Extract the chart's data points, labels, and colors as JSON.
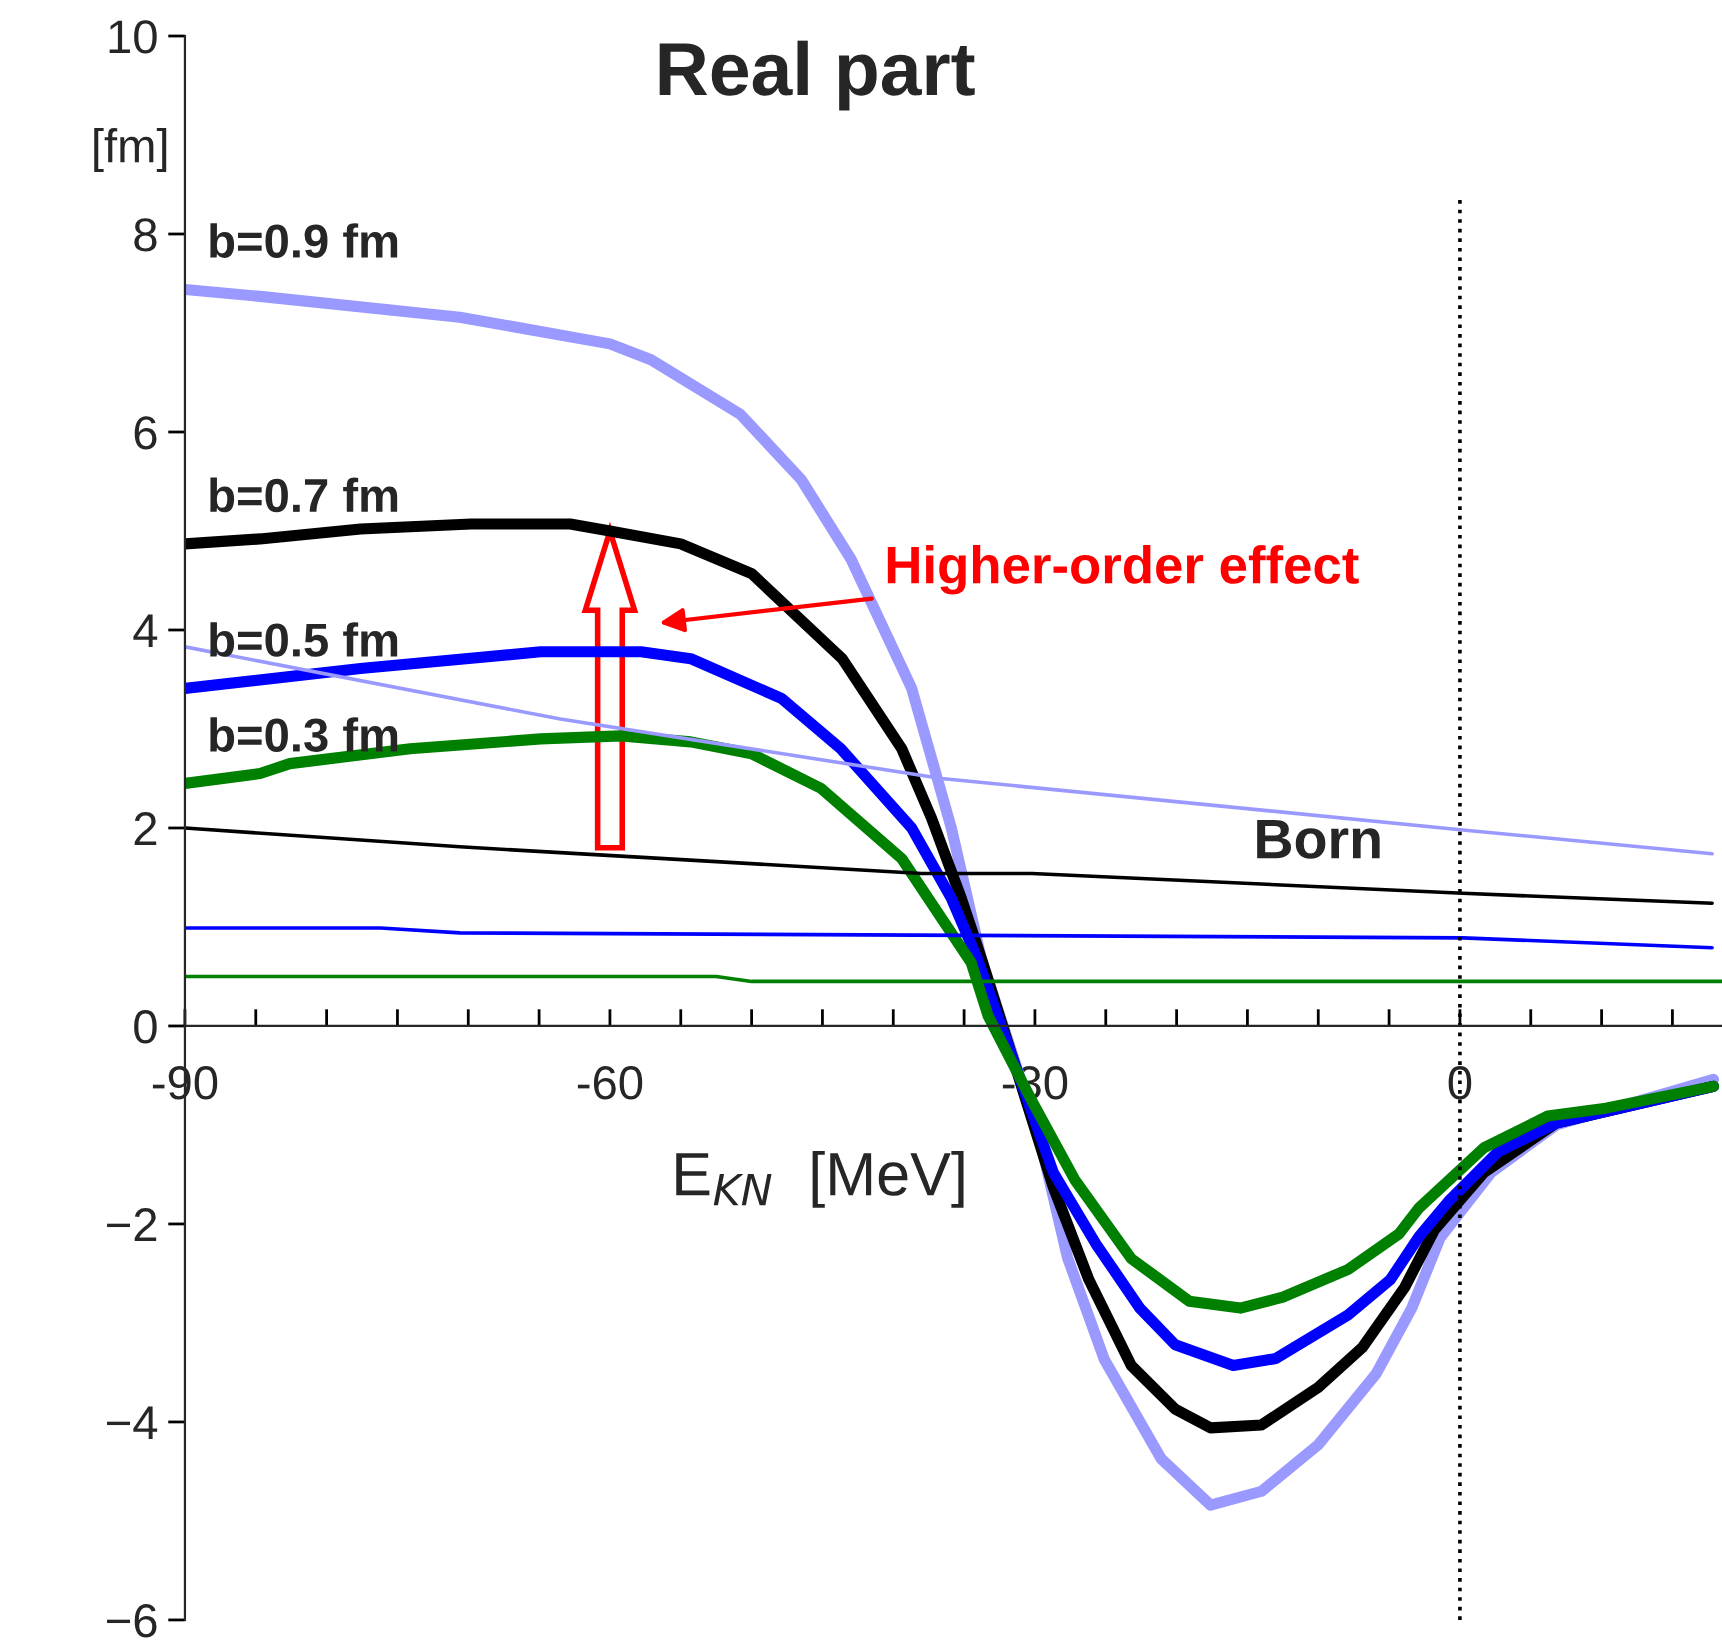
{
  "chart_data": {
    "type": "line",
    "title": "Real part",
    "xlabel": "E$_{KN}$  [MeV]",
    "ylabel": "[fm]",
    "xlim": [
      -90,
      18.5
    ],
    "ylim": [
      -6,
      10
    ],
    "xticks": [
      {
        "value": -90,
        "label": "-90"
      },
      {
        "value": -85,
        "label": null
      },
      {
        "value": -80,
        "label": null
      },
      {
        "value": -75,
        "label": null
      },
      {
        "value": -70,
        "label": null
      },
      {
        "value": -65,
        "label": null
      },
      {
        "value": -60,
        "label": "-60"
      },
      {
        "value": -55,
        "label": null
      },
      {
        "value": -50,
        "label": null
      },
      {
        "value": -45,
        "label": null
      },
      {
        "value": -40,
        "label": null
      },
      {
        "value": -35,
        "label": null
      },
      {
        "value": -30,
        "label": "-30"
      },
      {
        "value": -25,
        "label": null
      },
      {
        "value": -20,
        "label": null
      },
      {
        "value": -15,
        "label": null
      },
      {
        "value": -10,
        "label": null
      },
      {
        "value": -5,
        "label": null
      },
      {
        "value": 0,
        "label": "0"
      },
      {
        "value": 5,
        "label": null
      },
      {
        "value": 10,
        "label": null
      },
      {
        "value": 15,
        "label": null
      }
    ],
    "yticks": [
      {
        "value": -6,
        "label": "−6"
      },
      {
        "value": -4,
        "label": "−4"
      },
      {
        "value": -2,
        "label": "−2"
      },
      0,
      2,
      4,
      6,
      8,
      10
    ],
    "grid": false,
    "series": [
      {
        "name": "b=0.9 fm",
        "color": "#9999ff",
        "x": [
          -90,
          -84.7,
          -70.6,
          -60,
          -57.1,
          -50.8,
          -46.5,
          -43,
          -38.7,
          -35.9,
          -33.8,
          -29.7,
          -27.7,
          -25.1,
          -21.1,
          -17.6,
          -14.0,
          -10.0,
          -5.9,
          -3.4,
          -1.4,
          2.2,
          6.8,
          17.9
        ],
        "values": [
          7.44,
          7.37,
          7.16,
          6.89,
          6.73,
          6.18,
          5.52,
          4.72,
          3.41,
          2.0,
          0.69,
          -1.12,
          -2.34,
          -3.37,
          -4.37,
          -4.84,
          -4.7,
          -4.23,
          -3.51,
          -2.85,
          -2.14,
          -1.48,
          -1.0,
          -0.54
        ]
      },
      {
        "name": "b=0.7 fm",
        "color": "#000000",
        "x": [
          -90,
          -84.7,
          -77.6,
          -69.8,
          -62.8,
          -60,
          -55,
          -50,
          -43.6,
          -39.4,
          -37.3,
          -35.2,
          -33.8,
          -28.7,
          -26.2,
          -23.2,
          -20.1,
          -17.6,
          -14.0,
          -10.0,
          -6.9,
          -3.9,
          -1.8,
          1.7,
          6.8,
          17.9
        ],
        "values": [
          4.87,
          4.92,
          5.02,
          5.07,
          5.07,
          5.0,
          4.87,
          4.57,
          3.71,
          2.8,
          2.1,
          1.29,
          0.69,
          -1.63,
          -2.56,
          -3.43,
          -3.87,
          -4.06,
          -4.03,
          -3.65,
          -3.25,
          -2.64,
          -2.06,
          -1.48,
          -0.98,
          -0.61
        ]
      },
      {
        "name": "b=0.5 fm",
        "color": "#0000ff",
        "x": [
          -90,
          -77.6,
          -64.9,
          -57.8,
          -54.3,
          -47.9,
          -43.7,
          -38.7,
          -35.9,
          -34.1,
          -28.7,
          -25.7,
          -22.6,
          -20.1,
          -16.0,
          -13.0,
          -7.9,
          -4.9,
          -2.9,
          -0.8,
          2.7,
          6.8,
          17.9
        ],
        "values": [
          3.41,
          3.61,
          3.78,
          3.78,
          3.71,
          3.31,
          2.8,
          2.0,
          1.29,
          0.69,
          -1.48,
          -2.2,
          -2.85,
          -3.22,
          -3.43,
          -3.36,
          -2.92,
          -2.56,
          -2.13,
          -1.77,
          -1.27,
          -0.98,
          -0.61
        ]
      },
      {
        "name": "b=0.3 fm",
        "color": "#008000",
        "x": [
          -90,
          -84.7,
          -82.6,
          -74.1,
          -64.9,
          -59.2,
          -54.3,
          -50,
          -45.1,
          -39.4,
          -36.6,
          -34.5,
          -33.3,
          -30.2,
          -27.2,
          -23.2,
          -19.1,
          -15.5,
          -12.5,
          -7.9,
          -4.3,
          -2.9,
          1.7,
          6.2,
          10.3,
          17.9
        ],
        "values": [
          2.45,
          2.55,
          2.65,
          2.8,
          2.9,
          2.93,
          2.87,
          2.75,
          2.4,
          1.69,
          1.09,
          0.64,
          0.1,
          -0.76,
          -1.55,
          -2.35,
          -2.78,
          -2.85,
          -2.74,
          -2.46,
          -2.1,
          -1.84,
          -1.23,
          -0.91,
          -0.83,
          -0.61
        ]
      },
      {
        "color": "#9999ff",
        "x": [
          -90,
          -63.5,
          -36.6,
          0.2,
          17.8
        ],
        "values": [
          3.83,
          3.1,
          2.5,
          1.98,
          1.74
        ]
      },
      {
        "color": "#000000",
        "x": [
          -90,
          -70.6,
          -38,
          -30.2,
          0.2,
          17.8
        ],
        "values": [
          2.0,
          1.81,
          1.54,
          1.54,
          1.34,
          1.24
        ]
      },
      {
        "color": "#0000ff",
        "x": [
          -90,
          -76.2,
          -70.6,
          0.2,
          17.8
        ],
        "values": [
          0.99,
          0.99,
          0.94,
          0.89,
          0.79
        ]
      },
      {
        "color": "#008000",
        "x": [
          -90,
          -52.5,
          -50,
          18.5
        ],
        "values": [
          0.5,
          0.5,
          0.45,
          0.45
        ]
      }
    ],
    "ref_lines": [
      {
        "axis": "x",
        "value": 0,
        "color": "#000000",
        "line_style": "dotted"
      }
    ],
    "annotations": [
      {
        "text": "Born",
        "x": -10,
        "y": 1.41
      },
      "Higher-order effect"
    ]
  }
}
